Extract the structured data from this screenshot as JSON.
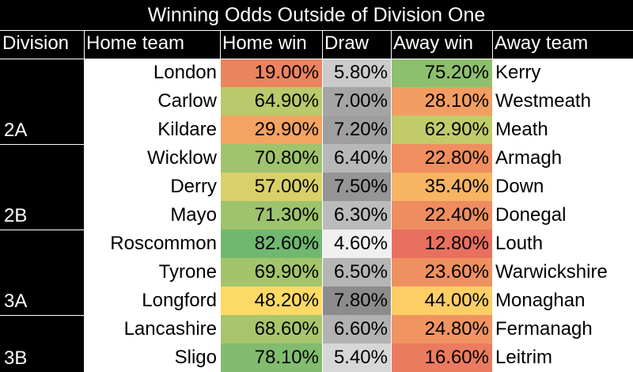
{
  "chart_data": {
    "type": "table",
    "title": "Winning Odds Outside of Division One",
    "columns": [
      "Division",
      "Home team",
      "Home win",
      "Draw",
      "Away win",
      "Away team"
    ],
    "divisions": [
      {
        "name": "2A",
        "rows": 3
      },
      {
        "name": "2B",
        "rows": 3
      },
      {
        "name": "3A",
        "rows": 3
      },
      {
        "name": "3B",
        "rows": 2
      }
    ],
    "rows": [
      {
        "home": "London",
        "home_win": "19.00%",
        "draw": "5.80%",
        "away_win": "75.20%",
        "away": "Kerry"
      },
      {
        "home": "Carlow",
        "home_win": "64.90%",
        "draw": "7.00%",
        "away_win": "28.10%",
        "away": "Westmeath"
      },
      {
        "home": "Kildare",
        "home_win": "29.90%",
        "draw": "7.20%",
        "away_win": "62.90%",
        "away": "Meath"
      },
      {
        "home": "Wicklow",
        "home_win": "70.80%",
        "draw": "6.40%",
        "away_win": "22.80%",
        "away": "Armagh"
      },
      {
        "home": "Derry",
        "home_win": "57.00%",
        "draw": "7.50%",
        "away_win": "35.40%",
        "away": "Down"
      },
      {
        "home": "Mayo",
        "home_win": "71.30%",
        "draw": "6.30%",
        "away_win": "22.40%",
        "away": "Donegal"
      },
      {
        "home": "Roscommon",
        "home_win": "82.60%",
        "draw": "4.60%",
        "away_win": "12.80%",
        "away": "Louth"
      },
      {
        "home": "Tyrone",
        "home_win": "69.90%",
        "draw": "6.50%",
        "away_win": "23.60%",
        "away": "Warwickshire"
      },
      {
        "home": "Longford",
        "home_win": "48.20%",
        "draw": "7.80%",
        "away_win": "44.00%",
        "away": "Monaghan"
      },
      {
        "home": "Lancashire",
        "home_win": "68.60%",
        "draw": "6.60%",
        "away_win": "24.80%",
        "away": "Fermanagh"
      },
      {
        "home": "Sligo",
        "home_win": "78.10%",
        "draw": "5.40%",
        "away_win": "16.60%",
        "away": "Leitrim"
      }
    ],
    "color_scale": {
      "win_low": "#e8705e",
      "win_mid": "#ffd966",
      "win_high": "#70b870",
      "draw_low": "#f0f0f0",
      "draw_high": "#8c8c8c"
    }
  }
}
